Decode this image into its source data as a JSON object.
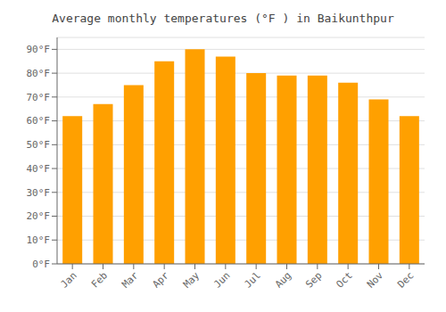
{
  "chart_data": {
    "type": "bar",
    "title": "Average monthly temperatures (°F ) in Baikunthpur",
    "categories": [
      "Jan",
      "Feb",
      "Mar",
      "Apr",
      "May",
      "Jun",
      "Jul",
      "Aug",
      "Sep",
      "Oct",
      "Nov",
      "Dec"
    ],
    "values": [
      62,
      67,
      75,
      85,
      90,
      87,
      80,
      79,
      79,
      76,
      69,
      62
    ],
    "color": "#FFA000",
    "ylim": [
      0,
      95
    ],
    "yticks": [
      {
        "value": 0,
        "label": "0°F"
      },
      {
        "value": 10,
        "label": "10°F"
      },
      {
        "value": 20,
        "label": "20°F"
      },
      {
        "value": 30,
        "label": "30°F"
      },
      {
        "value": 40,
        "label": "40°F"
      },
      {
        "value": 50,
        "label": "50°F"
      },
      {
        "value": 60,
        "label": "60°F"
      },
      {
        "value": 70,
        "label": "70°F"
      },
      {
        "value": 80,
        "label": "80°F"
      },
      {
        "value": 90,
        "label": "90°F"
      }
    ],
    "grid": true
  }
}
